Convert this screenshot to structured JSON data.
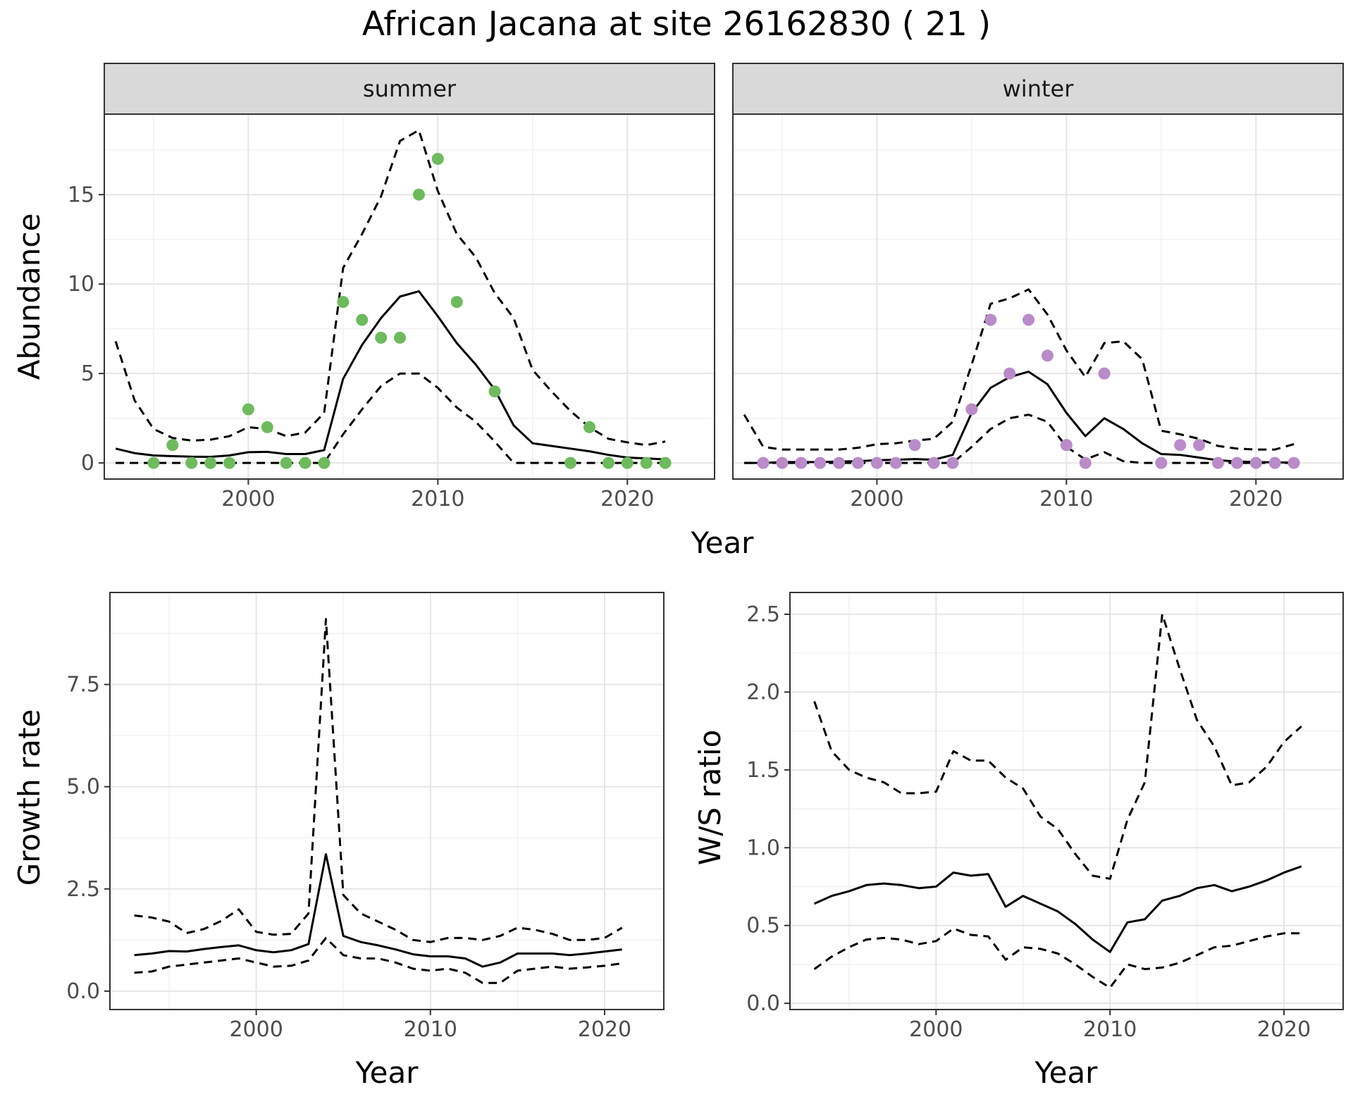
{
  "title": "African Jacana at site 26162830 ( 21 )",
  "chart_data": [
    {
      "type": "line",
      "facets": [
        "summer",
        "winter"
      ],
      "xlabel": "Year",
      "ylabel": "Abundance",
      "xlim": [
        1992.4,
        2024.6
      ],
      "ylim": [
        -0.9,
        19.5
      ],
      "x_ticks": [
        2000,
        2010,
        2020
      ],
      "y_ticks": [
        0,
        5,
        10,
        15
      ],
      "grid": true,
      "legend": "none",
      "colors": {
        "summer": "#6dbb5d",
        "winter": "#b98bc9",
        "line": "#000000"
      },
      "panels": [
        {
          "facet": "summer",
          "points": {
            "x": [
              1995,
              1996,
              1997,
              1998,
              1999,
              2000,
              2001,
              2002,
              2003,
              2004,
              2005,
              2006,
              2007,
              2008,
              2009,
              2010,
              2011,
              2013,
              2017,
              2018,
              2019,
              2020,
              2021,
              2022
            ],
            "y": [
              0,
              1,
              0,
              0,
              0,
              3,
              2,
              0,
              0,
              0,
              9,
              8,
              7,
              7,
              15,
              17,
              9,
              4,
              0,
              2,
              0,
              0,
              0,
              0
            ]
          },
          "series": [
            {
              "name": "fit",
              "x": [
                1993,
                1994,
                1995,
                1996,
                1997,
                1998,
                1999,
                2000,
                2001,
                2002,
                2003,
                2004,
                2005,
                2006,
                2007,
                2008,
                2009,
                2010,
                2011,
                2012,
                2013,
                2014,
                2015,
                2016,
                2017,
                2018,
                2019,
                2020,
                2021,
                2022
              ],
              "y": [
                0.8,
                0.55,
                0.42,
                0.38,
                0.35,
                0.34,
                0.42,
                0.6,
                0.62,
                0.5,
                0.5,
                0.72,
                4.7,
                6.6,
                8.1,
                9.3,
                9.6,
                8.2,
                6.7,
                5.5,
                4.1,
                2.1,
                1.1,
                0.95,
                0.8,
                0.65,
                0.45,
                0.3,
                0.25,
                0.2
              ]
            },
            {
              "name": "upper",
              "x": [
                1993,
                1994,
                1995,
                1996,
                1997,
                1998,
                1999,
                2000,
                2001,
                2002,
                2003,
                2004,
                2005,
                2006,
                2007,
                2008,
                2009,
                2010,
                2011,
                2012,
                2013,
                2014,
                2015,
                2016,
                2017,
                2018,
                2019,
                2020,
                2021,
                2022
              ],
              "y": [
                6.8,
                3.5,
                1.9,
                1.4,
                1.25,
                1.3,
                1.5,
                2.0,
                1.9,
                1.5,
                1.7,
                2.8,
                10.9,
                12.8,
                14.9,
                18.0,
                18.6,
                15.2,
                12.8,
                11.5,
                9.5,
                8.1,
                5.2,
                4.0,
                2.9,
                2.0,
                1.35,
                1.15,
                1.0,
                1.2
              ]
            },
            {
              "name": "lower",
              "x": [
                1993,
                1994,
                1995,
                1996,
                1997,
                1998,
                1999,
                2000,
                2001,
                2002,
                2003,
                2004,
                2005,
                2006,
                2007,
                2008,
                2009,
                2010,
                2011,
                2012,
                2013,
                2014,
                2015,
                2016,
                2017,
                2018,
                2019,
                2020,
                2021,
                2022
              ],
              "y": [
                0,
                0,
                0,
                0,
                0,
                0,
                0,
                0,
                0,
                0,
                0,
                0,
                1.6,
                3.0,
                4.3,
                5.0,
                5.0,
                4.2,
                3.1,
                2.3,
                1.2,
                0,
                0,
                0,
                0,
                0,
                0,
                0,
                0,
                0
              ]
            }
          ]
        },
        {
          "facet": "winter",
          "points": {
            "x": [
              1994,
              1995,
              1996,
              1997,
              1998,
              1999,
              2000,
              2001,
              2002,
              2003,
              2004,
              2005,
              2006,
              2007,
              2008,
              2009,
              2010,
              2011,
              2012,
              2015,
              2016,
              2017,
              2018,
              2019,
              2020,
              2021,
              2022
            ],
            "y": [
              0,
              0,
              0,
              0,
              0,
              0,
              0,
              0,
              1,
              0,
              0,
              3,
              8,
              5,
              8,
              6,
              1,
              0,
              5,
              0,
              1,
              1,
              0,
              0,
              0,
              0,
              0
            ]
          },
          "series": [
            {
              "name": "fit",
              "x": [
                1993,
                1994,
                1995,
                1996,
                1997,
                1998,
                1999,
                2000,
                2001,
                2002,
                2003,
                2004,
                2005,
                2006,
                2007,
                2008,
                2009,
                2010,
                2011,
                2012,
                2013,
                2014,
                2015,
                2016,
                2017,
                2018,
                2019,
                2020,
                2021,
                2022
              ],
              "y": [
                0,
                0,
                0.05,
                0.05,
                0.05,
                0.08,
                0.1,
                0.15,
                0.18,
                0.22,
                0.18,
                0.45,
                2.8,
                4.2,
                4.8,
                5.1,
                4.4,
                2.8,
                1.5,
                2.5,
                1.9,
                1.1,
                0.5,
                0.45,
                0.3,
                0.15,
                0.08,
                0.05,
                0.03,
                0.02
              ]
            },
            {
              "name": "upper",
              "x": [
                1993,
                1994,
                1995,
                1996,
                1997,
                1998,
                1999,
                2000,
                2001,
                2002,
                2003,
                2004,
                2005,
                2006,
                2007,
                2008,
                2009,
                2010,
                2011,
                2012,
                2013,
                2014,
                2015,
                2016,
                2017,
                2018,
                2019,
                2020,
                2021,
                2022
              ],
              "y": [
                2.7,
                0.9,
                0.75,
                0.75,
                0.75,
                0.75,
                0.85,
                1.05,
                1.1,
                1.25,
                1.35,
                2.3,
                5.5,
                8.9,
                9.2,
                9.7,
                8.3,
                6.3,
                4.8,
                6.7,
                6.8,
                5.8,
                1.8,
                1.6,
                1.35,
                0.95,
                0.8,
                0.75,
                0.75,
                1.05
              ]
            },
            {
              "name": "lower",
              "x": [
                1993,
                1994,
                1995,
                1996,
                1997,
                1998,
                1999,
                2000,
                2001,
                2002,
                2003,
                2004,
                2005,
                2006,
                2007,
                2008,
                2009,
                2010,
                2011,
                2012,
                2013,
                2014,
                2015,
                2016,
                2017,
                2018,
                2019,
                2020,
                2021,
                2022
              ],
              "y": [
                0,
                0,
                0,
                0,
                0,
                0,
                0,
                0,
                0,
                0,
                0,
                0,
                0.9,
                1.9,
                2.5,
                2.7,
                2.3,
                0.9,
                0.2,
                0.6,
                0.1,
                0,
                0,
                0,
                0,
                0,
                0,
                0,
                0,
                0
              ]
            }
          ]
        }
      ]
    },
    {
      "type": "line",
      "xlabel": "Year",
      "ylabel": "Growth rate",
      "xlim": [
        1991.6,
        2023.4
      ],
      "ylim": [
        -0.45,
        9.75
      ],
      "x_ticks": [
        2000,
        2010,
        2020
      ],
      "y_ticks": [
        0.0,
        2.5,
        5.0,
        7.5
      ],
      "y_tick_labels": [
        "0.0",
        "2.5",
        "5.0",
        "7.5"
      ],
      "grid": true,
      "legend": "none",
      "series": [
        {
          "name": "fit",
          "x": [
            1993,
            1994,
            1995,
            1996,
            1997,
            1998,
            1999,
            2000,
            2001,
            2002,
            2003,
            2004,
            2005,
            2006,
            2007,
            2008,
            2009,
            2010,
            2011,
            2012,
            2013,
            2014,
            2015,
            2016,
            2017,
            2018,
            2019,
            2020,
            2021
          ],
          "y": [
            0.88,
            0.92,
            0.98,
            0.97,
            1.03,
            1.08,
            1.12,
            1.0,
            0.95,
            1.0,
            1.15,
            3.35,
            1.35,
            1.2,
            1.12,
            1.02,
            0.9,
            0.85,
            0.85,
            0.8,
            0.6,
            0.7,
            0.92,
            0.92,
            0.92,
            0.88,
            0.92,
            0.97,
            1.02
          ]
        },
        {
          "name": "upper",
          "x": [
            1993,
            1994,
            1995,
            1996,
            1997,
            1998,
            1999,
            2000,
            2001,
            2002,
            2003,
            2004,
            2005,
            2006,
            2007,
            2008,
            2009,
            2010,
            2011,
            2012,
            2013,
            2014,
            2015,
            2016,
            2017,
            2018,
            2019,
            2020,
            2021
          ],
          "y": [
            1.85,
            1.8,
            1.7,
            1.42,
            1.52,
            1.72,
            2.0,
            1.45,
            1.38,
            1.4,
            1.9,
            9.1,
            2.35,
            1.9,
            1.7,
            1.5,
            1.25,
            1.2,
            1.3,
            1.3,
            1.25,
            1.35,
            1.55,
            1.5,
            1.4,
            1.25,
            1.25,
            1.3,
            1.55
          ]
        },
        {
          "name": "lower",
          "x": [
            1993,
            1994,
            1995,
            1996,
            1997,
            1998,
            1999,
            2000,
            2001,
            2002,
            2003,
            2004,
            2005,
            2006,
            2007,
            2008,
            2009,
            2010,
            2011,
            2012,
            2013,
            2014,
            2015,
            2016,
            2017,
            2018,
            2019,
            2020,
            2021
          ],
          "y": [
            0.45,
            0.48,
            0.6,
            0.65,
            0.7,
            0.75,
            0.8,
            0.7,
            0.6,
            0.62,
            0.75,
            1.3,
            0.88,
            0.8,
            0.8,
            0.7,
            0.55,
            0.5,
            0.55,
            0.45,
            0.2,
            0.2,
            0.5,
            0.55,
            0.6,
            0.55,
            0.58,
            0.62,
            0.68
          ]
        }
      ]
    },
    {
      "type": "line",
      "xlabel": "Year",
      "ylabel": "W/S ratio",
      "xlim": [
        1991.6,
        2023.4
      ],
      "ylim": [
        -0.04,
        2.64
      ],
      "x_ticks": [
        2000,
        2010,
        2020
      ],
      "y_ticks": [
        0.0,
        0.5,
        1.0,
        1.5,
        2.0,
        2.5
      ],
      "y_tick_labels": [
        "0.0",
        "0.5",
        "1.0",
        "1.5",
        "2.0",
        "2.5"
      ],
      "grid": true,
      "legend": "none",
      "series": [
        {
          "name": "fit",
          "x": [
            1993,
            1994,
            1995,
            1996,
            1997,
            1998,
            1999,
            2000,
            2001,
            2002,
            2003,
            2004,
            2005,
            2006,
            2007,
            2008,
            2009,
            2010,
            2011,
            2012,
            2013,
            2014,
            2015,
            2016,
            2017,
            2018,
            2019,
            2020,
            2021
          ],
          "y": [
            0.64,
            0.69,
            0.72,
            0.76,
            0.77,
            0.76,
            0.74,
            0.75,
            0.84,
            0.82,
            0.83,
            0.62,
            0.69,
            0.64,
            0.59,
            0.51,
            0.41,
            0.33,
            0.52,
            0.54,
            0.66,
            0.69,
            0.74,
            0.76,
            0.72,
            0.75,
            0.79,
            0.84,
            0.88
          ]
        },
        {
          "name": "upper",
          "x": [
            1993,
            1994,
            1995,
            1996,
            1997,
            1998,
            1999,
            2000,
            2001,
            2002,
            2003,
            2004,
            2005,
            2006,
            2007,
            2008,
            2009,
            2010,
            2011,
            2012,
            2013,
            2014,
            2015,
            2016,
            2017,
            2018,
            2019,
            2020,
            2021
          ],
          "y": [
            1.94,
            1.62,
            1.5,
            1.45,
            1.42,
            1.35,
            1.35,
            1.36,
            1.62,
            1.56,
            1.56,
            1.45,
            1.38,
            1.2,
            1.12,
            0.96,
            0.82,
            0.8,
            1.18,
            1.42,
            2.5,
            2.15,
            1.82,
            1.65,
            1.4,
            1.42,
            1.52,
            1.68,
            1.78
          ]
        },
        {
          "name": "lower",
          "x": [
            1993,
            1994,
            1995,
            1996,
            1997,
            1998,
            1999,
            2000,
            2001,
            2002,
            2003,
            2004,
            2005,
            2006,
            2007,
            2008,
            2009,
            2010,
            2011,
            2012,
            2013,
            2014,
            2015,
            2016,
            2017,
            2018,
            2019,
            2020,
            2021
          ],
          "y": [
            0.22,
            0.3,
            0.36,
            0.41,
            0.42,
            0.41,
            0.38,
            0.4,
            0.48,
            0.44,
            0.43,
            0.28,
            0.36,
            0.35,
            0.32,
            0.25,
            0.17,
            0.1,
            0.25,
            0.22,
            0.23,
            0.26,
            0.31,
            0.36,
            0.37,
            0.4,
            0.43,
            0.45,
            0.45
          ]
        }
      ]
    }
  ]
}
